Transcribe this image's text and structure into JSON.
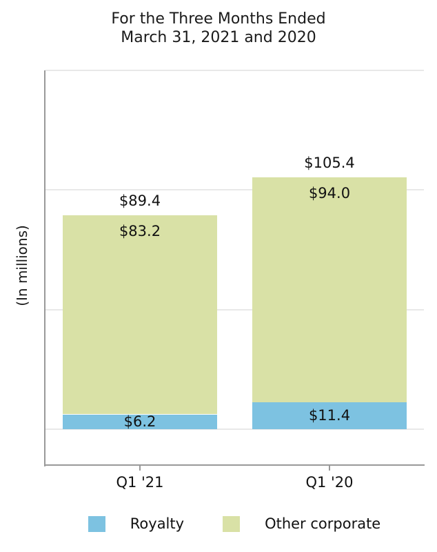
{
  "chart": {
    "title_line1": "For the Three Months Ended",
    "title_line2": "March 31, 2021 and 2020",
    "ylabel": "(In millions)"
  },
  "chart_data": {
    "type": "bar",
    "stacked": true,
    "orientation": "vertical",
    "title": "For the Three Months Ended March 31, 2021 and 2020",
    "xlabel": "",
    "ylabel": "(In millions)",
    "categories": [
      "Q1 '21",
      "Q1 '20"
    ],
    "series": [
      {
        "name": "Royalty",
        "color": "#7dc2e1",
        "values": [
          6.2,
          11.4
        ]
      },
      {
        "name": "Other corporate",
        "color": "#d9e1a6",
        "values": [
          83.2,
          94.0
        ]
      }
    ],
    "totals": [
      89.4,
      105.4
    ],
    "value_prefix": "$",
    "ylim": [
      -15,
      150
    ],
    "gridline_values": [
      0,
      50,
      100,
      150
    ],
    "grid": true,
    "y_tick_labels_shown": false,
    "legend_position": "bottom"
  },
  "colors": {
    "axis": "#999999",
    "gridline": "#e8e8e8",
    "text": "#111111"
  }
}
